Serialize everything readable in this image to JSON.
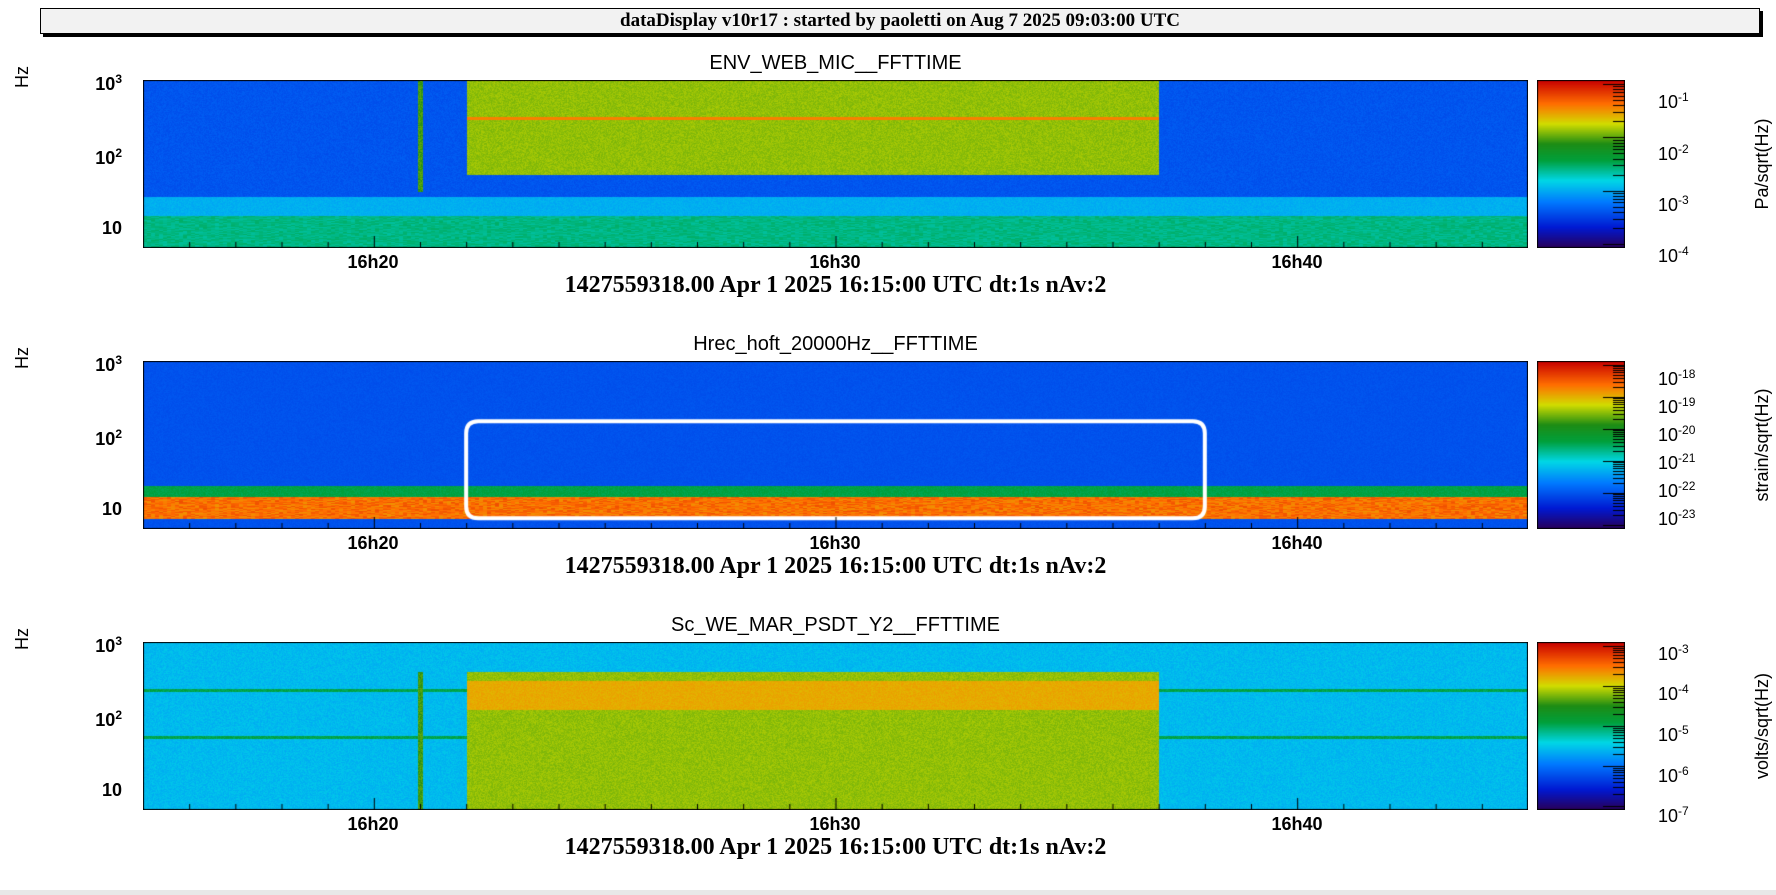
{
  "header": {
    "title": "dataDisplay v10r17 : started by paoletti on Aug  7 2025 09:03:00 UTC"
  },
  "chart_data": [
    {
      "type": "heatmap",
      "title": "ENV_WEB_MIC__FFTTIME",
      "ylabel": "Hz",
      "yscale": "log",
      "y_ticks": [
        {
          "label": "10",
          "value": 10
        },
        {
          "label": "10^2",
          "value": 100
        },
        {
          "label": "10^3",
          "value": 1000
        }
      ],
      "x_ticks": [
        "16h20",
        "16h30",
        "16h40"
      ],
      "x_range": [
        "16h15",
        "16h45"
      ],
      "colorbar": {
        "unit": "Pa/sqrt(Hz)",
        "scale": "log",
        "ticks": [
          {
            "label": "10^-1",
            "exp": -1
          },
          {
            "label": "10^-2",
            "exp": -2
          },
          {
            "label": "10^-3",
            "exp": -3
          },
          {
            "label": "10^-4",
            "exp": -4
          }
        ]
      },
      "features": [
        {
          "kind": "band",
          "t_start": "16h22",
          "t_end": "16h37",
          "f_low": 50,
          "f_high": 1000,
          "level": "high"
        },
        {
          "kind": "line",
          "t": "16h21",
          "f_low": 30,
          "f_high": 1000
        }
      ],
      "footer": "1427559318.00 Apr 1 2025 16:15:00 UTC dt:1s nAv:2"
    },
    {
      "type": "heatmap",
      "title": "Hrec_hoft_20000Hz__FFTTIME",
      "ylabel": "Hz",
      "yscale": "log",
      "y_ticks": [
        {
          "label": "10",
          "value": 10
        },
        {
          "label": "10^2",
          "value": 100
        },
        {
          "label": "10^3",
          "value": 1000
        }
      ],
      "x_ticks": [
        "16h20",
        "16h30",
        "16h40"
      ],
      "x_range": [
        "16h15",
        "16h45"
      ],
      "colorbar": {
        "unit": "strain/sqrt(Hz)",
        "scale": "log",
        "ticks": [
          {
            "label": "10^-18",
            "exp": -18
          },
          {
            "label": "10^-19",
            "exp": -19
          },
          {
            "label": "10^-20",
            "exp": -20
          },
          {
            "label": "10^-21",
            "exp": -21
          },
          {
            "label": "10^-22",
            "exp": -22
          },
          {
            "label": "10^-23",
            "exp": -23
          }
        ]
      },
      "features": [
        {
          "kind": "band",
          "t_start": "16h15",
          "t_end": "16h45",
          "f_low": 7,
          "f_high": 14,
          "level": "high"
        },
        {
          "kind": "highlight-box",
          "t_start": "16h22",
          "t_end": "16h38",
          "f_low": 7,
          "f_high": 150
        }
      ],
      "footer": "1427559318.00 Apr 1 2025 16:15:00 UTC dt:1s nAv:2"
    },
    {
      "type": "heatmap",
      "title": "Sc_WE_MAR_PSDT_Y2__FFTTIME",
      "ylabel": "Hz",
      "yscale": "log",
      "y_ticks": [
        {
          "label": "10",
          "value": 10
        },
        {
          "label": "10^2",
          "value": 100
        },
        {
          "label": "10^3",
          "value": 1000
        }
      ],
      "x_ticks": [
        "16h20",
        "16h30",
        "16h40"
      ],
      "x_range": [
        "16h15",
        "16h45"
      ],
      "colorbar": {
        "unit": "volts/sqrt(Hz)",
        "scale": "log",
        "ticks": [
          {
            "label": "10^-3",
            "exp": -3
          },
          {
            "label": "10^-4",
            "exp": -4
          },
          {
            "label": "10^-5",
            "exp": -5
          },
          {
            "label": "10^-6",
            "exp": -6
          },
          {
            "label": "10^-7",
            "exp": -7
          }
        ]
      },
      "features": [
        {
          "kind": "band",
          "t_start": "16h22",
          "t_end": "16h37",
          "f_low": 5,
          "f_high": 400,
          "level": "high"
        },
        {
          "kind": "line",
          "t": "16h21",
          "f_low": 5,
          "f_high": 400
        }
      ],
      "footer": "1427559318.00 Apr 1 2025 16:15:00 UTC dt:1s nAv:2"
    }
  ]
}
